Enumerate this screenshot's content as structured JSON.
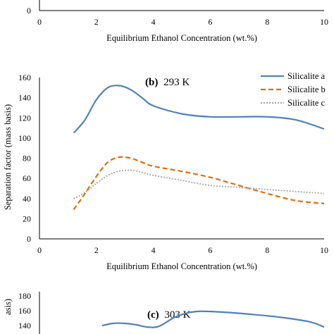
{
  "chart_data": [
    {
      "panel": "a",
      "type": "line",
      "title": "",
      "xlabel": "Equilibrium Ethanol Concentration (wt.%)",
      "xlim": [
        0,
        10
      ],
      "xticks": [
        "0",
        "2",
        "4",
        "6",
        "8",
        "10"
      ],
      "yticks_visible": [
        "0"
      ],
      "series": []
    },
    {
      "panel": "b",
      "type": "line",
      "title_letter": "(b)",
      "title_temp": "293 K",
      "xlabel": "Equilibrium Ethanol Concentration (wt.%)",
      "ylabel": "Separation factor (mass basis)",
      "xlim": [
        0,
        10
      ],
      "ylim": [
        0,
        160
      ],
      "xticks": [
        "0",
        "2",
        "4",
        "6",
        "8",
        "10"
      ],
      "yticks": [
        "0",
        "20",
        "40",
        "60",
        "80",
        "100",
        "120",
        "140",
        "160"
      ],
      "legend_position": "top-right",
      "series": [
        {
          "name": "Silicalite a",
          "color": "#4f81bd",
          "style": "solid",
          "x": [
            1.2,
            1.6,
            2.0,
            2.4,
            2.8,
            3.2,
            3.6,
            4.0,
            5.0,
            6.0,
            7.0,
            8.0,
            9.0,
            10.0
          ],
          "y": [
            105,
            118,
            138,
            150,
            152,
            148,
            140,
            132,
            124,
            121,
            121,
            121,
            118,
            109
          ]
        },
        {
          "name": "Silicalite b",
          "color": "#e36c09",
          "style": "dashed",
          "x": [
            1.2,
            1.6,
            2.0,
            2.4,
            2.8,
            3.2,
            3.6,
            4.0,
            5.0,
            6.0,
            7.0,
            8.0,
            9.0,
            10.0
          ],
          "y": [
            29,
            45,
            62,
            76,
            81,
            80,
            76,
            72,
            67,
            61,
            53,
            45,
            38,
            35
          ]
        },
        {
          "name": "Silicalite c",
          "color": "#a6a6a6",
          "style": "dotted",
          "x": [
            1.2,
            1.6,
            2.0,
            2.4,
            2.8,
            3.2,
            3.6,
            4.0,
            5.0,
            6.0,
            7.0,
            8.0,
            9.0,
            10.0
          ],
          "y": [
            40,
            46,
            55,
            63,
            67,
            68,
            66,
            63,
            58,
            53,
            51,
            49,
            47,
            45
          ]
        }
      ]
    },
    {
      "panel": "c",
      "type": "line",
      "title_letter": "(c)",
      "title_temp": "303 K",
      "ylabel_fragment": "asis)",
      "xlim": [
        0,
        10
      ],
      "ylim_visible": [
        140,
        180
      ],
      "yticks": [
        "140",
        "160",
        "180"
      ],
      "series": [
        {
          "name": "Silicalite a",
          "color": "#4f81bd",
          "style": "solid",
          "x": [
            2.2,
            2.6,
            3.0,
            3.4,
            3.8,
            4.2,
            4.8,
            5.5,
            6.5,
            7.5,
            8.5,
            9.5,
            10.0
          ],
          "y": [
            140,
            143,
            143,
            141,
            138,
            139,
            152,
            159,
            158,
            155,
            151,
            145,
            138
          ]
        }
      ]
    }
  ]
}
